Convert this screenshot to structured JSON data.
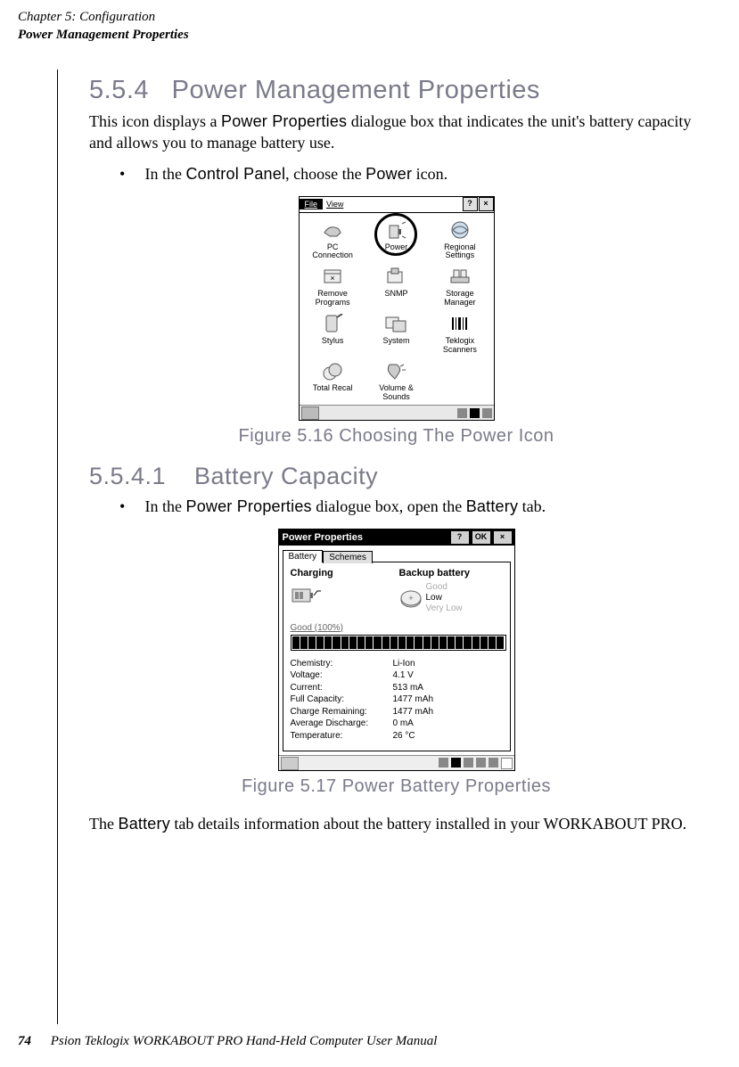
{
  "header": {
    "chapter": "Chapter 5: Configuration",
    "section_title": "Power Management Properties"
  },
  "section": {
    "number": "5.5.4",
    "title": "Power Management Properties",
    "intro_pre": "This icon displays a ",
    "intro_bold": "Power Properties",
    "intro_post": " dialogue box that indicates the unit's battery capacity and allows you to manage battery use.",
    "bullet1_pre": "In the ",
    "bullet1_b1": "Control Panel",
    "bullet1_mid": ", choose the ",
    "bullet1_b2": "Power",
    "bullet1_post": " icon."
  },
  "figure1": {
    "caption": "Figure 5.16 Choosing The Power Icon",
    "menubar": {
      "file": "File",
      "view": "View",
      "help": "?",
      "close": "×"
    },
    "items": [
      {
        "label1": "PC",
        "label2": "Connection"
      },
      {
        "label1": "Power",
        "label2": "",
        "highlight": true
      },
      {
        "label1": "Regional",
        "label2": "Settings"
      },
      {
        "label1": "Remove",
        "label2": "Programs"
      },
      {
        "label1": "SNMP",
        "label2": ""
      },
      {
        "label1": "Storage",
        "label2": "Manager"
      },
      {
        "label1": "Stylus",
        "label2": ""
      },
      {
        "label1": "System",
        "label2": ""
      },
      {
        "label1": "Teklogix",
        "label2": "Scanners"
      },
      {
        "label1": "Total Recal",
        "label2": ""
      },
      {
        "label1": "Volume &",
        "label2": "Sounds"
      }
    ]
  },
  "subsection": {
    "number": "5.5.4.1",
    "title": "Battery Capacity",
    "bullet_pre": "In the ",
    "bullet_b1": "Power Properties",
    "bullet_mid": " dialogue box, open the ",
    "bullet_b2": "Battery",
    "bullet_post": " tab."
  },
  "figure2": {
    "caption": "Figure 5.17 Power Battery Properties",
    "title": "Power Properties",
    "buttons": {
      "help": "?",
      "ok": "OK",
      "close": "×"
    },
    "tabs": {
      "active": "Battery",
      "other": "Schemes"
    },
    "charging_hdr": "Charging",
    "backup_hdr": "Backup battery",
    "backup_levels": {
      "good": "Good",
      "low": "Low",
      "verylow": "Very Low"
    },
    "status_text": "Good  (100%)",
    "segments": 26,
    "props": [
      {
        "k": "Chemistry:",
        "v": "Li-Ion"
      },
      {
        "k": "Voltage:",
        "v": "4.1 V"
      },
      {
        "k": "Current:",
        "v": "513 mA"
      },
      {
        "k": "Full Capacity:",
        "v": "1477 mAh"
      },
      {
        "k": "Charge Remaining:",
        "v": "1477 mAh"
      },
      {
        "k": "Average Discharge:",
        "v": "0 mA"
      },
      {
        "k": "Temperature:",
        "v": "26 °C"
      }
    ]
  },
  "closing": {
    "pre": "The ",
    "bold": "Battery",
    "post": " tab details information about the battery installed in your WORKABOUT PRO."
  },
  "footer": {
    "page": "74",
    "text": "Psion Teklogix WORKABOUT PRO Hand-Held Computer User Manual"
  }
}
